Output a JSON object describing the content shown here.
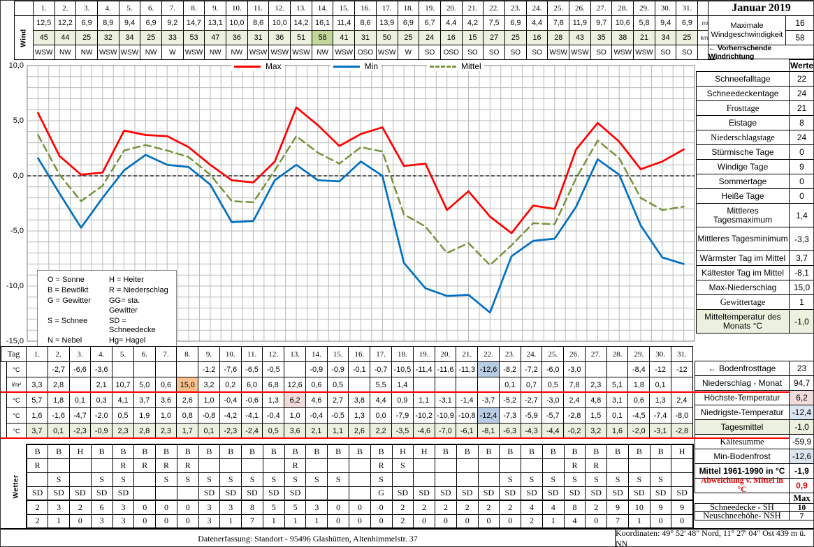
{
  "month_title": "Januar 2019",
  "wind": {
    "row_label": "Wind",
    "days": [
      "1.",
      "2.",
      "3.",
      "4.",
      "5.",
      "6.",
      "7.",
      "8.",
      "9.",
      "10.",
      "11.",
      "12.",
      "13.",
      "14.",
      "15.",
      "16.",
      "17.",
      "18.",
      "19.",
      "20.",
      "21.",
      "22.",
      "23.",
      "24.",
      "25.",
      "26.",
      "27.",
      "28.",
      "29.",
      "30.",
      "31."
    ],
    "ms": [
      "12,5",
      "12,2",
      "6,9",
      "8,9",
      "9,4",
      "6,9",
      "9,2",
      "14,7",
      "13,1",
      "10,0",
      "8,6",
      "10,0",
      "14,2",
      "16,1",
      "11,4",
      "8,6",
      "13,9",
      "6,9",
      "6,7",
      "4,4",
      "4,2",
      "7,5",
      "6,9",
      "4,4",
      "7,8",
      "11,9",
      "9,7",
      "10,6",
      "5,8",
      "9,4",
      "6,9"
    ],
    "kmh": [
      "45",
      "44",
      "25",
      "32",
      "34",
      "25",
      "33",
      "53",
      "47",
      "36",
      "31",
      "36",
      "51",
      "58",
      "41",
      "31",
      "50",
      "25",
      "24",
      "16",
      "15",
      "27",
      "25",
      "16",
      "28",
      "43",
      "35",
      "38",
      "21",
      "34",
      "25"
    ],
    "dir": [
      "WSW",
      "NW",
      "NW",
      "WSW",
      "WSW",
      "NW",
      "W",
      "WSW",
      "NW",
      "NW",
      "WSW",
      "WSW",
      "WSW",
      "NW",
      "WSW",
      "OSO",
      "WSW",
      "W",
      "SO",
      "OSO",
      "SO",
      "SO",
      "SO",
      "SO",
      "WSW",
      "WSW",
      "SO",
      "WSW",
      "WSW",
      "SO",
      "SO"
    ],
    "max_kmh_day_index": 13,
    "unit_ms": "m/s",
    "unit_kmh": "km/h",
    "max_label": "Maximale Windgeschwindigkeit",
    "max_ms": "16",
    "max_kmh": "58",
    "dir_label": "← Vorherrschende Windrichtung"
  },
  "chart": {
    "yticks": [
      "10,0",
      "5,0",
      "0,0",
      "-5,0",
      "-10,0",
      "-15,0"
    ]
  },
  "chart_data": {
    "type": "line",
    "x_days": [
      1,
      2,
      3,
      4,
      5,
      6,
      7,
      8,
      9,
      10,
      11,
      12,
      13,
      14,
      15,
      16,
      17,
      18,
      19,
      20,
      21,
      22,
      23,
      24,
      25,
      26,
      27,
      28,
      29,
      30,
      31
    ],
    "ylim": [
      -15,
      10
    ],
    "grid": true,
    "legend_position": "top-center",
    "series": [
      {
        "name": "Max",
        "color": "#ff0000",
        "style": "solid",
        "values": [
          5.7,
          1.8,
          0.1,
          0.3,
          4.1,
          3.7,
          3.6,
          2.6,
          1.0,
          -0.4,
          -0.6,
          1.3,
          6.2,
          4.6,
          2.7,
          3.8,
          4.4,
          0.9,
          1.1,
          -3.1,
          -1.4,
          -3.7,
          -5.2,
          -2.7,
          -3.0,
          2.4,
          4.8,
          3.1,
          0.6,
          1.3,
          2.4
        ]
      },
      {
        "name": "Min",
        "color": "#0070c0",
        "style": "solid",
        "values": [
          1.6,
          -1.6,
          -4.7,
          -2.0,
          0.5,
          1.9,
          1.0,
          0.8,
          -0.8,
          -4.2,
          -4.1,
          -0.4,
          1.0,
          -0.4,
          -0.5,
          1.3,
          0.0,
          -7.9,
          -10.2,
          -10.9,
          -10.8,
          -12.4,
          -7.3,
          -5.9,
          -5.7,
          -2.8,
          1.5,
          0.1,
          -4.5,
          -7.4,
          -8.0
        ]
      },
      {
        "name": "Mittel",
        "color": "#77933c",
        "style": "dashed",
        "values": [
          3.7,
          0.1,
          -2.3,
          -0.9,
          2.3,
          2.8,
          2.3,
          1.7,
          0.1,
          -2.3,
          -2.4,
          0.5,
          3.6,
          2.1,
          1.1,
          2.6,
          2.2,
          -3.5,
          -4.6,
          -7.0,
          -6.1,
          -8.1,
          -6.3,
          -4.3,
          -4.4,
          -0.2,
          3.2,
          1.6,
          -2.0,
          -3.1,
          -2.8
        ]
      }
    ]
  },
  "codes_legend": [
    [
      "O = Sonne",
      "H = Heiter"
    ],
    [
      "B = Bewölkt",
      "R = Niederschlag"
    ],
    [
      "G = Gewitter",
      "GG= sta. Gewitter"
    ],
    [
      "S = Schnee",
      "SD = Schneedecke"
    ],
    [
      "N = Nebel",
      "Hg= Hagel"
    ]
  ],
  "stats_top": {
    "header": "Werte",
    "rows": [
      {
        "label": "Schneefalltage",
        "value": "22"
      },
      {
        "label": "Schneedeckentage",
        "value": "24"
      },
      {
        "label": "Frosttage",
        "value": "21"
      },
      {
        "label": "Eistage",
        "value": "8"
      },
      {
        "label": "Niederschlagstage",
        "value": "24"
      },
      {
        "label": "Stürmische Tage",
        "value": "0"
      },
      {
        "label": "Windige Tage",
        "value": "9"
      },
      {
        "label": "Sommertage",
        "value": "0"
      },
      {
        "label": "Heiße Tage",
        "value": "0"
      },
      {
        "label": "Mittleres Tagesmaximum",
        "value": "1,4"
      },
      {
        "label": "Mittleres Tagesminimum",
        "value": "-3,3"
      },
      {
        "label": "Wärmster Tag im Mittel",
        "value": "3,7"
      },
      {
        "label": "Kältester Tag im Mittel",
        "value": "-8,1"
      },
      {
        "label": "Max-Niederschlag",
        "value": "15,0"
      },
      {
        "label": "Gewittertage",
        "value": "1"
      },
      {
        "label": "Mitteltemperatur des Monats °C",
        "value": "-1,0"
      }
    ]
  },
  "stats_bottom": {
    "rows": [
      {
        "label": "← Bodenfrosttage",
        "value": "23"
      },
      {
        "label": "Niederschlag - Monat",
        "value": "94,7"
      },
      {
        "label": "Höchste-Temperatur",
        "value": "6,2"
      },
      {
        "label": "Niedrigste-Temperatur",
        "value": "-12,4"
      },
      {
        "label": "Tagesmittel",
        "value": "-1,0"
      },
      {
        "label": "Kältesumme",
        "value": "-59,9"
      },
      {
        "label": "Min-Bodenfrost",
        "value": "-12,6"
      },
      {
        "label": "Mittel 1961-1990 in °C",
        "value": "-1,9"
      },
      {
        "label": "Abweichung v. Mittel in °C",
        "value": "0,9"
      },
      {
        "label": "",
        "value": "Max"
      },
      {
        "label": "Schneedecke -   SH",
        "value": "10"
      },
      {
        "label": "Neuschneehöhe- NSH",
        "value": "7"
      }
    ]
  },
  "daily": {
    "tag_label": "Tag",
    "rows": [
      {
        "name": "bodenfrost",
        "unit": "°C",
        "values": [
          "",
          "-2,7",
          "-6,6",
          "-3,6",
          "",
          "",
          "",
          "",
          "-1,2",
          "-7,6",
          "-6,5",
          "-0,5",
          "",
          "-0,9",
          "-0,9",
          "-0,1",
          "-0,7",
          "-10,5",
          "-11,4",
          "-11,6",
          "-11,3",
          "-12,6",
          "-8,2",
          "-7,2",
          "-6,0",
          "-3,0",
          "",
          "",
          "-8,4",
          "-12",
          "-12"
        ],
        "highlights": {
          "21": "blue"
        }
      },
      {
        "name": "niederschlag",
        "unit": "l/m²",
        "values": [
          "3,3",
          "2,8",
          "",
          "2,1",
          "10,7",
          "5,0",
          "0,6",
          "15,0",
          "3,2",
          "0,2",
          "6,0",
          "6,8",
          "12,6",
          "0,6",
          "0,5",
          "",
          "5,5",
          "1,4",
          "",
          "",
          "",
          "",
          "0,1",
          "0,7",
          "0,5",
          "7,8",
          "2,3",
          "5,1",
          "1,8",
          "0,1",
          ""
        ],
        "highlights": {
          "7": "orange"
        }
      },
      {
        "name": "tmax",
        "unit": "°C",
        "values": [
          "5,7",
          "1,8",
          "0,1",
          "0,3",
          "4,1",
          "3,7",
          "3,6",
          "2,6",
          "1,0",
          "-0,4",
          "-0,6",
          "1,3",
          "6,2",
          "4,6",
          "2,7",
          "3,8",
          "4,4",
          "0,9",
          "1,1",
          "-3,1",
          "-1,4",
          "-3,7",
          "-5,2",
          "-2,7",
          "-3,0",
          "2,4",
          "4,8",
          "3,1",
          "0,6",
          "1,3",
          "2,4"
        ],
        "highlights": {
          "12": "pink"
        }
      },
      {
        "name": "tmin",
        "unit": "°C",
        "values": [
          "1,6",
          "-1,6",
          "-4,7",
          "-2,0",
          "0,5",
          "1,9",
          "1,0",
          "0,8",
          "-0,8",
          "-4,2",
          "-4,1",
          "-0,4",
          "1,0",
          "-0,4",
          "-0,5",
          "1,3",
          "0,0",
          "-7,9",
          "-10,2",
          "-10,9",
          "-10,8",
          "-12,4",
          "-7,3",
          "-5,9",
          "-5,7",
          "-2,8",
          "1,5",
          "0,1",
          "-4,5",
          "-7,4",
          "-8,0"
        ],
        "highlights": {
          "21": "blue"
        }
      },
      {
        "name": "tagesmittel",
        "unit": "°C",
        "row_bg": "green",
        "values": [
          "3,7",
          "0,1",
          "-2,3",
          "-0,9",
          "2,3",
          "2,8",
          "2,3",
          "1,7",
          "0,1",
          "-2,3",
          "-2,4",
          "0,5",
          "3,6",
          "2,1",
          "1,1",
          "2,6",
          "2,2",
          "-3,5",
          "-4,6",
          "-7,0",
          "-6,1",
          "-8,1",
          "-6,3",
          "-4,3",
          "-4,4",
          "-0,2",
          "3,2",
          "1,6",
          "-2,0",
          "-3,1",
          "-2,8"
        ]
      }
    ]
  },
  "wetter": {
    "row_label": "Wetter",
    "rows": [
      {
        "name": "bewoelkung",
        "values": [
          "B",
          "B",
          "H",
          "B",
          "B",
          "B",
          "B",
          "B",
          "B",
          "B",
          "B",
          "B",
          "B",
          "B",
          "B",
          "B",
          "B",
          "H",
          "H",
          "B",
          "B",
          "B",
          "B",
          "B",
          "B",
          "B",
          "B",
          "B",
          "B",
          "B",
          "H"
        ]
      },
      {
        "name": "regen",
        "values": [
          "R",
          "",
          "",
          "",
          "R",
          "R",
          "R",
          "R",
          "",
          "",
          "",
          "",
          "R",
          "",
          "",
          "",
          "R",
          "S",
          "",
          "",
          "",
          "",
          "",
          "",
          "",
          "R",
          "R",
          "",
          "",
          "",
          ""
        ]
      },
      {
        "name": "schnee",
        "values": [
          "",
          "S",
          "",
          "S",
          "S",
          "",
          "S",
          "S",
          "S",
          "S",
          "S",
          "S",
          "S",
          "S",
          "S",
          "",
          "S",
          "",
          "",
          "",
          "",
          "",
          "S",
          "S",
          "S",
          "S",
          "S",
          "S",
          "S",
          "S",
          ""
        ]
      },
      {
        "name": "schneedecke",
        "values": [
          "SD",
          "SD",
          "SD",
          "SD",
          "SD",
          "",
          "",
          "",
          "SD",
          "SD",
          "SD",
          "SD",
          "SD",
          "",
          "",
          "",
          "G",
          "SD",
          "SD",
          "SD",
          "SD",
          "SD",
          "SD",
          "SD",
          "SD",
          "SD",
          "SD",
          "SD",
          "SD",
          "SD",
          "SD"
        ]
      },
      {
        "name": "schneehoehe-sh",
        "values": [
          "2",
          "3",
          "2",
          "6",
          "3",
          "0",
          "0",
          "0",
          "3",
          "3",
          "8",
          "5",
          "5",
          "3",
          "0",
          "0",
          "0",
          "2",
          "2",
          "2",
          "2",
          "2",
          "2",
          "4",
          "4",
          "8",
          "2",
          "9",
          "10",
          "9",
          "9"
        ]
      },
      {
        "name": "neuschnee-nsh",
        "values": [
          "2",
          "1",
          "0",
          "3",
          "3",
          "0",
          "0",
          "0",
          "3",
          "1",
          "7",
          "1",
          "1",
          "1",
          "0",
          "0",
          "0",
          "2",
          "0",
          "0",
          "0",
          "0",
          "0",
          "2",
          "1",
          "4",
          "0",
          "7",
          "1",
          "0",
          "0"
        ]
      }
    ]
  },
  "footer": {
    "left": "Datenerfassung:  Standort -  95496  Glashütten, Altenhimmelstr. 37",
    "right": "Koordinaten:  49° 52' 48\" Nord,   11° 27' 04\" Ost   439 m ü. NN"
  }
}
